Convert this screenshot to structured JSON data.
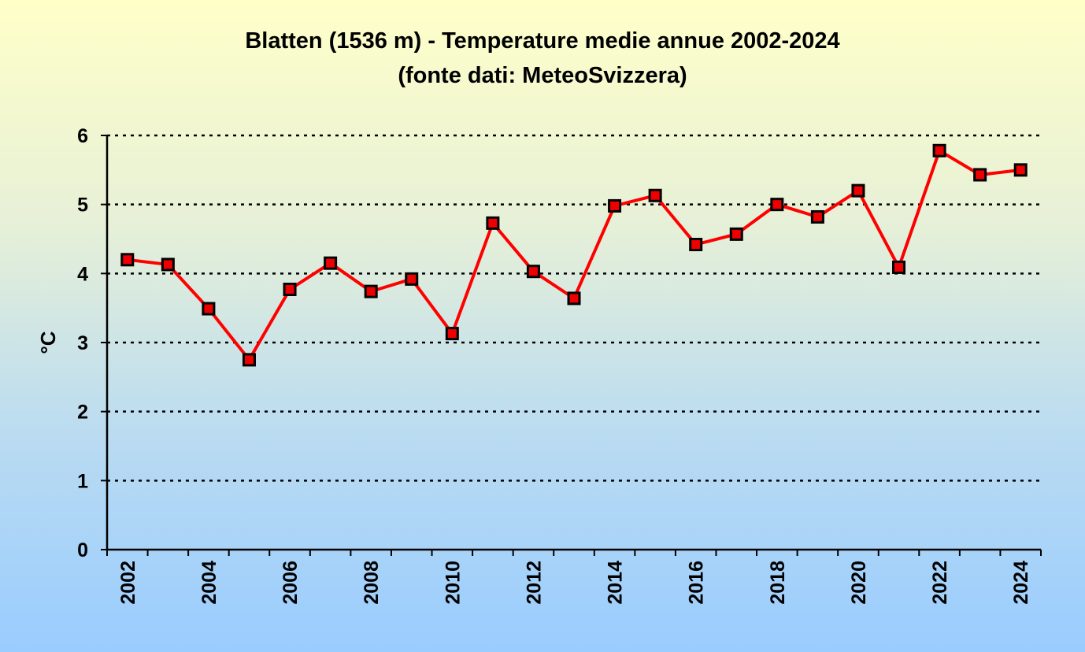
{
  "chart_data": {
    "type": "line",
    "title": "Blatten (1536 m) - Temperature medie annue 2002-2024",
    "subtitle": "(fonte dati: MeteoSvizzera)",
    "xlabel": "",
    "ylabel": "°C",
    "x": [
      2002,
      2003,
      2004,
      2005,
      2006,
      2007,
      2008,
      2009,
      2010,
      2011,
      2012,
      2013,
      2014,
      2015,
      2016,
      2017,
      2018,
      2019,
      2020,
      2021,
      2022,
      2023,
      2024
    ],
    "x_tick_labels": [
      "2002",
      "2004",
      "2006",
      "2008",
      "2010",
      "2012",
      "2014",
      "2016",
      "2018",
      "2020",
      "2022",
      "2024"
    ],
    "series": [
      {
        "values": [
          4.2,
          4.13,
          3.49,
          2.75,
          3.77,
          4.15,
          3.74,
          3.92,
          3.13,
          4.73,
          4.03,
          3.64,
          4.98,
          5.13,
          4.42,
          4.57,
          5.0,
          4.82,
          5.2,
          4.09,
          5.78,
          5.43,
          5.5
        ]
      }
    ],
    "ylim": [
      0,
      6
    ],
    "y_ticks": [
      0,
      1,
      2,
      3,
      4,
      5,
      6
    ],
    "grid": "horizontal-dotted",
    "legend": "none",
    "colors": {
      "line": "#ff0000",
      "marker_fill": "#ee0000",
      "marker_border": "#000000",
      "grid": "#000000",
      "bg_top": "#ffffc8",
      "bg_bottom": "#99ccff"
    }
  }
}
